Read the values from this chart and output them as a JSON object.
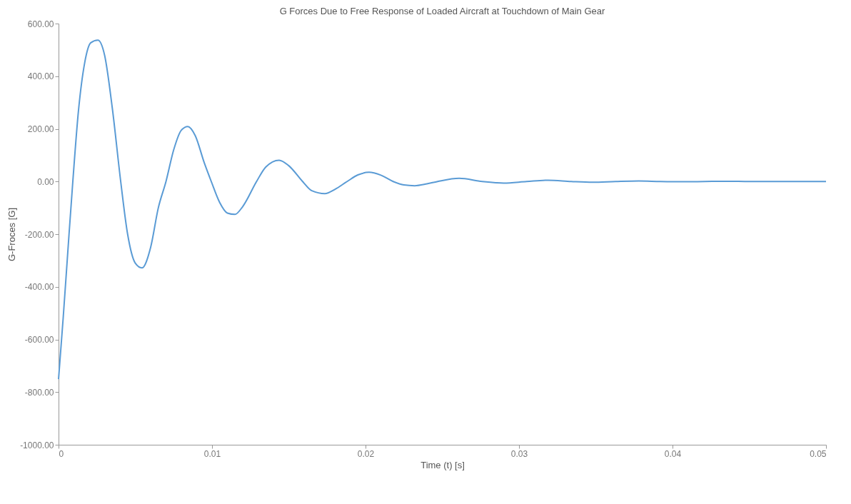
{
  "chart_data": {
    "type": "line",
    "title": "G Forces Due to Free Response of Loaded Aircraft at Touchdown of Main Gear",
    "xlabel": "Time (t) [s]",
    "ylabel": "G-Froces [G]",
    "xlim": [
      0,
      0.05
    ],
    "xticks": [
      0,
      0.01,
      0.02,
      0.03,
      0.04,
      0.05
    ],
    "ylim": [
      -1000,
      600
    ],
    "yticks": [
      {
        "value": -1000,
        "label": "-1000.00"
      },
      {
        "value": -800,
        "label": "-800.00"
      },
      {
        "value": -600,
        "label": "-600.00"
      },
      {
        "value": -400,
        "label": "-400.00"
      },
      {
        "value": -200,
        "label": "-200.00"
      },
      {
        "value": 0,
        "label": "0.00"
      },
      {
        "value": 200,
        "label": "200.00"
      },
      {
        "value": 400,
        "label": "400.00"
      },
      {
        "value": 600,
        "label": "600.00"
      }
    ],
    "grid": false,
    "marker": "none",
    "line_style": "solid",
    "x": [
      0,
      0.0003,
      0.0006,
      0.00093,
      0.0013,
      0.0017,
      0.0021,
      0.00256,
      0.003,
      0.0035,
      0.00405,
      0.0045,
      0.005,
      0.00544,
      0.006,
      0.0065,
      0.007,
      0.0075,
      0.008,
      0.00842,
      0.0089,
      0.0095,
      0.00995,
      0.0105,
      0.011,
      0.01149,
      0.012,
      0.0129,
      0.0135,
      0.01437,
      0.015,
      0.0159,
      0.0165,
      0.01735,
      0.018,
      0.0188,
      0.0195,
      0.02023,
      0.021,
      0.0218,
      0.0225,
      0.0232,
      0.024,
      0.0247,
      0.0261,
      0.0276,
      0.029,
      0.0305,
      0.0319,
      0.0334,
      0.0348,
      0.0363,
      0.0378,
      0.0392,
      0.0407,
      0.0421,
      0.0436,
      0.045,
      0.05
    ],
    "series": [
      {
        "color": "#5a9bd5",
        "values": [
          -751,
          -520,
          -270,
          0,
          270,
          450,
          527,
          537,
          480,
          280,
          0,
          -200,
          -310,
          -328,
          -250,
          -100,
          0,
          120,
          195,
          209,
          175,
          70,
          0,
          -80,
          -120,
          -125,
          -95,
          0,
          55,
          81,
          60,
          0,
          -35,
          -46,
          -30,
          0,
          25,
          35,
          24,
          0,
          -13,
          -16,
          -9,
          0,
          12,
          0,
          -6,
          0,
          5,
          0,
          -3,
          0,
          2,
          0,
          -1,
          0,
          1,
          0,
          0
        ]
      }
    ]
  }
}
